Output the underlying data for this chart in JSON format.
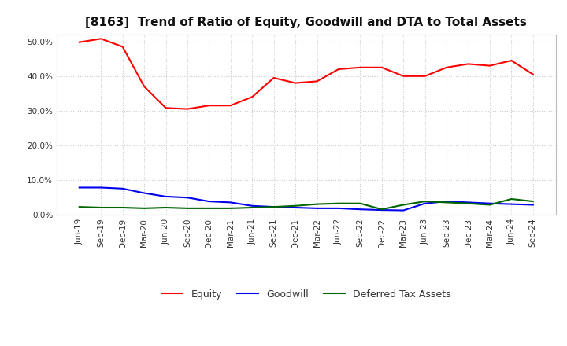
{
  "title": "[8163]  Trend of Ratio of Equity, Goodwill and DTA to Total Assets",
  "x_labels": [
    "Jun-19",
    "Sep-19",
    "Dec-19",
    "Mar-20",
    "Jun-20",
    "Sep-20",
    "Dec-20",
    "Mar-21",
    "Jun-21",
    "Sep-21",
    "Dec-21",
    "Mar-22",
    "Jun-22",
    "Sep-22",
    "Dec-22",
    "Mar-23",
    "Jun-23",
    "Sep-23",
    "Dec-23",
    "Mar-24",
    "Jun-24",
    "Sep-24"
  ],
  "equity": [
    49.8,
    50.8,
    48.5,
    37.0,
    30.8,
    30.5,
    31.5,
    31.5,
    34.0,
    39.5,
    38.0,
    38.5,
    42.0,
    42.5,
    42.5,
    40.0,
    40.0,
    42.5,
    43.5,
    43.0,
    44.5,
    40.5
  ],
  "goodwill": [
    7.8,
    7.8,
    7.5,
    6.2,
    5.2,
    4.9,
    3.8,
    3.5,
    2.5,
    2.2,
    2.0,
    1.8,
    1.8,
    1.5,
    1.3,
    1.2,
    3.2,
    3.8,
    3.5,
    3.2,
    3.0,
    2.8
  ],
  "dta": [
    2.2,
    2.0,
    2.0,
    1.8,
    2.0,
    1.8,
    1.8,
    1.8,
    2.0,
    2.2,
    2.5,
    3.0,
    3.2,
    3.2,
    1.5,
    2.8,
    3.8,
    3.5,
    3.2,
    2.8,
    4.5,
    3.8
  ],
  "equity_color": "#FF0000",
  "goodwill_color": "#0000EE",
  "dta_color": "#006600",
  "ylim": [
    0,
    52
  ],
  "yticks": [
    0,
    10,
    20,
    30,
    40,
    50
  ],
  "background_color": "#FFFFFF",
  "plot_bg_color": "#FFFFFF",
  "grid_color": "#CCCCCC",
  "title_fontsize": 11,
  "tick_fontsize": 7.5,
  "legend_fontsize": 9
}
